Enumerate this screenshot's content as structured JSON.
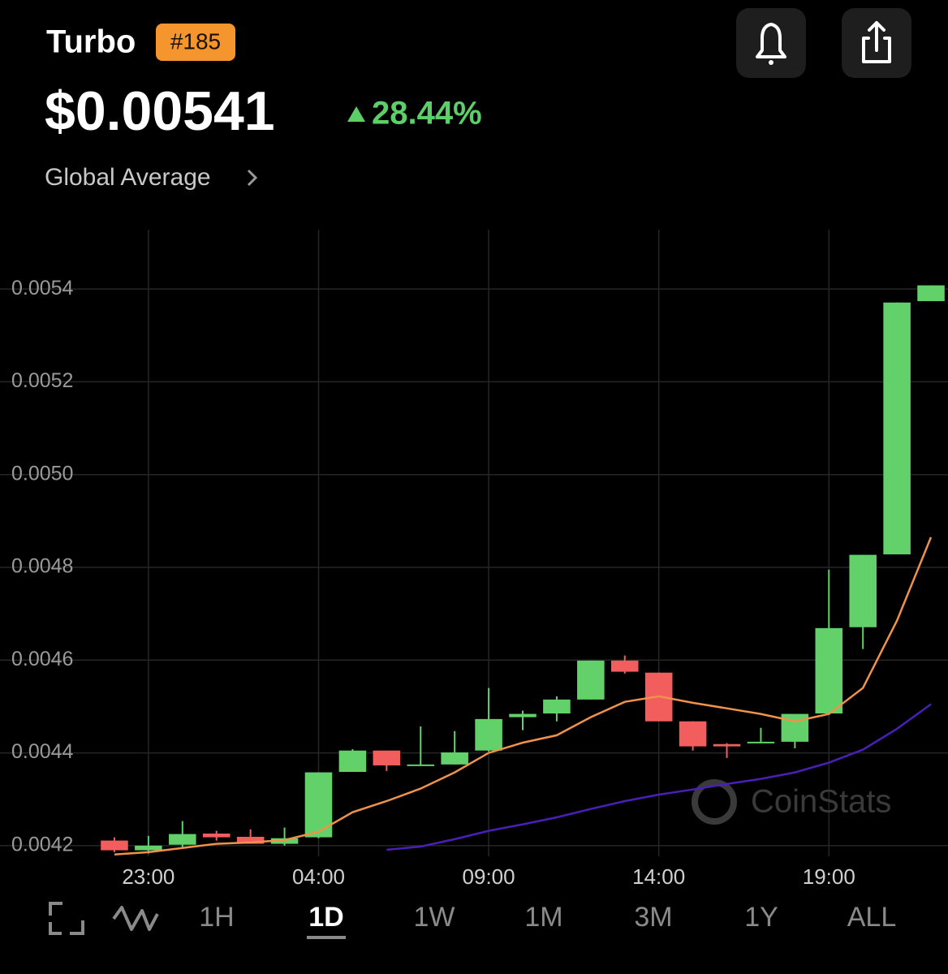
{
  "header": {
    "title": "Turbo",
    "rank": "#185",
    "price": "$0.00541",
    "change": "28.44%",
    "source": "Global Average"
  },
  "chart_data": {
    "type": "candlestick",
    "categories": [
      null,
      "23:00",
      null,
      null,
      null,
      null,
      "04:00",
      null,
      null,
      null,
      null,
      "09:00",
      null,
      null,
      null,
      null,
      "14:00",
      null,
      null,
      null,
      null,
      "19:00",
      null,
      null,
      null
    ],
    "open": [
      0.004211,
      0.00419,
      0.004202,
      0.004226,
      0.004219,
      0.004204,
      0.004218,
      0.004359,
      0.004405,
      0.004373,
      0.004375,
      0.004405,
      0.004477,
      0.004485,
      0.004515,
      0.004599,
      0.004573,
      0.004468,
      0.004419,
      0.004421,
      0.004424,
      0.004485,
      0.004671,
      0.004828,
      0.005374
    ],
    "high": [
      0.004218,
      0.004221,
      0.004253,
      0.004232,
      0.004235,
      0.004239,
      0.004358,
      0.004408,
      0.004405,
      0.004457,
      0.004447,
      0.00454,
      0.004491,
      0.004522,
      0.004599,
      0.00461,
      0.004573,
      0.004468,
      0.004421,
      0.004454,
      0.004484,
      0.004795,
      0.004827,
      0.005371,
      0.005408
    ],
    "low": [
      0.004186,
      0.004183,
      0.004197,
      0.004211,
      0.004204,
      0.0042,
      0.004216,
      0.004359,
      0.004361,
      0.004372,
      0.004375,
      0.004403,
      0.004449,
      0.004468,
      0.004515,
      0.004571,
      0.004468,
      0.004405,
      0.004389,
      0.004421,
      0.00441,
      0.004484,
      0.004624,
      0.004828,
      0.005374
    ],
    "close": [
      0.00419,
      0.0042,
      0.004225,
      0.004218,
      0.004204,
      0.004216,
      0.004358,
      0.004405,
      0.004373,
      0.004375,
      0.004401,
      0.004473,
      0.004484,
      0.004515,
      0.004599,
      0.004575,
      0.004468,
      0.004414,
      0.004414,
      0.004424,
      0.004484,
      0.004669,
      0.004827,
      0.005371,
      0.005408
    ],
    "up_color": "#62d16a",
    "down_color": "#f25d5d",
    "series": [
      {
        "color": "#f0924a",
        "values": [
          0.004181,
          0.004186,
          0.004195,
          0.004204,
          0.004207,
          0.004212,
          0.00423,
          0.004272,
          0.004296,
          0.004323,
          0.004358,
          0.0044,
          0.004422,
          0.004438,
          0.004477,
          0.00451,
          0.004522,
          0.004508,
          0.004496,
          0.004484,
          0.004468,
          0.004484,
          0.00454,
          0.004685,
          0.004865
        ]
      },
      {
        "color": "#4a1fb8",
        "values": [
          null,
          null,
          null,
          null,
          null,
          null,
          null,
          null,
          0.004191,
          0.004198,
          0.004214,
          0.004232,
          0.004246,
          0.004261,
          0.004279,
          0.004296,
          0.00431,
          0.004321,
          0.004333,
          0.004344,
          0.004358,
          0.004379,
          0.004407,
          0.004452,
          0.004505
        ]
      }
    ],
    "ylim": [
      0.004177,
      0.005528
    ],
    "yticks": [
      0.0042,
      0.0044,
      0.0046,
      0.0048,
      {
        "value": 0.005,
        "label": "0.0050"
      },
      0.0052,
      0.0054
    ],
    "grid": true,
    "watermark": "CoinStats"
  },
  "controls": {
    "ranges": [
      "1H",
      "1D",
      "1W",
      "1M",
      "3M",
      "1Y",
      "ALL"
    ],
    "selected": 1
  }
}
